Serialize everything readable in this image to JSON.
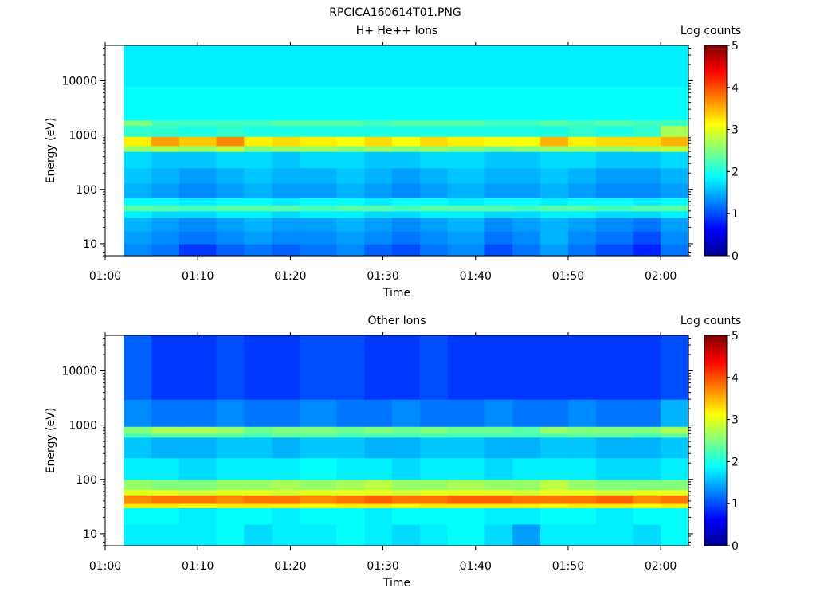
{
  "figure": {
    "title": "RPCICA160614T01.PNG"
  },
  "chart_data": [
    {
      "type": "heatmap",
      "title": "H+ He++ Ions",
      "xlabel": "Time",
      "ylabel": "Energy (eV)",
      "xlim": [
        "01:00",
        "02:03"
      ],
      "xticks": [
        "01:00",
        "01:10",
        "01:20",
        "01:30",
        "01:40",
        "01:50",
        "02:00"
      ],
      "ylim": [
        6,
        45000
      ],
      "yscale": "log",
      "yticks": [
        "10",
        "100",
        "1000",
        "10000"
      ],
      "data_start": "01:02",
      "colorbar": {
        "label": "Log counts",
        "range": [
          0,
          5
        ],
        "ticks": [
          "0",
          "1",
          "2",
          "3",
          "4",
          "5"
        ],
        "colormap": "jet"
      },
      "time_bins": [
        "01:02",
        "01:05",
        "01:08",
        "01:12",
        "01:15",
        "01:18",
        "01:21",
        "01:25",
        "01:28",
        "01:31",
        "01:34",
        "01:37",
        "01:41",
        "01:44",
        "01:47",
        "01:50",
        "01:53",
        "01:57",
        "02:00"
      ],
      "energy_bands": [
        {
          "e_min": 6,
          "e_max": 10,
          "log_counts": [
            1.3,
            1.2,
            0.9,
            1.1,
            1.2,
            1.1,
            1.2,
            1.3,
            1.1,
            1.0,
            1.2,
            1.3,
            1.0,
            1.2,
            1.4,
            1.2,
            1.0,
            0.8,
            1.2
          ]
        },
        {
          "e_min": 10,
          "e_max": 17,
          "log_counts": [
            1.4,
            1.3,
            1.2,
            1.3,
            1.4,
            1.3,
            1.3,
            1.4,
            1.3,
            1.2,
            1.3,
            1.4,
            1.2,
            1.3,
            1.5,
            1.3,
            1.2,
            1.0,
            1.3
          ]
        },
        {
          "e_min": 17,
          "e_max": 30,
          "log_counts": [
            1.5,
            1.4,
            1.3,
            1.4,
            1.5,
            1.4,
            1.4,
            1.5,
            1.4,
            1.3,
            1.4,
            1.5,
            1.3,
            1.4,
            1.5,
            1.4,
            1.3,
            1.2,
            1.4
          ]
        },
        {
          "e_min": 30,
          "e_max": 40,
          "log_counts": [
            1.8,
            1.7,
            1.7,
            1.8,
            1.8,
            1.7,
            1.8,
            1.8,
            1.7,
            1.7,
            1.8,
            1.8,
            1.7,
            1.7,
            1.8,
            1.8,
            1.7,
            1.7,
            1.8
          ]
        },
        {
          "e_min": 40,
          "e_max": 52,
          "log_counts": [
            2.3,
            2.3,
            2.2,
            2.3,
            2.3,
            2.3,
            2.2,
            2.3,
            2.3,
            2.2,
            2.3,
            2.3,
            2.3,
            2.2,
            2.3,
            2.3,
            2.2,
            2.3,
            2.3
          ]
        },
        {
          "e_min": 52,
          "e_max": 70,
          "log_counts": [
            1.9,
            1.9,
            1.8,
            1.9,
            1.9,
            1.8,
            1.9,
            1.9,
            1.8,
            1.9,
            1.9,
            1.8,
            1.9,
            1.9,
            1.8,
            1.9,
            1.9,
            1.8,
            1.9
          ]
        },
        {
          "e_min": 70,
          "e_max": 130,
          "log_counts": [
            1.5,
            1.4,
            1.3,
            1.4,
            1.5,
            1.4,
            1.4,
            1.5,
            1.4,
            1.3,
            1.4,
            1.5,
            1.4,
            1.4,
            1.5,
            1.4,
            1.3,
            1.3,
            1.4
          ]
        },
        {
          "e_min": 130,
          "e_max": 250,
          "log_counts": [
            1.6,
            1.5,
            1.4,
            1.5,
            1.6,
            1.5,
            1.5,
            1.6,
            1.5,
            1.4,
            1.5,
            1.6,
            1.5,
            1.5,
            1.6,
            1.5,
            1.4,
            1.4,
            1.5
          ]
        },
        {
          "e_min": 250,
          "e_max": 500,
          "log_counts": [
            1.7,
            1.6,
            1.6,
            1.7,
            1.7,
            1.6,
            1.7,
            1.7,
            1.6,
            1.6,
            1.7,
            1.7,
            1.6,
            1.6,
            1.7,
            1.7,
            1.6,
            1.6,
            1.7
          ]
        },
        {
          "e_min": 500,
          "e_max": 640,
          "log_counts": [
            2.6,
            2.7,
            2.6,
            2.8,
            2.5,
            2.6,
            2.6,
            2.5,
            2.6,
            2.5,
            2.6,
            2.5,
            2.4,
            2.5,
            2.6,
            2.6,
            2.6,
            2.7,
            2.8
          ]
        },
        {
          "e_min": 640,
          "e_max": 950,
          "log_counts": [
            3.2,
            3.6,
            3.4,
            3.7,
            3.2,
            3.3,
            3.2,
            3.1,
            3.3,
            3.1,
            3.3,
            3.2,
            3.1,
            3.1,
            3.5,
            3.2,
            3.3,
            3.3,
            3.5
          ]
        },
        {
          "e_min": 950,
          "e_max": 1500,
          "log_counts": [
            2.1,
            2.1,
            2.0,
            2.1,
            2.0,
            2.0,
            2.0,
            2.0,
            2.0,
            2.0,
            2.0,
            2.0,
            2.0,
            2.0,
            2.0,
            2.1,
            2.0,
            2.1,
            2.7
          ]
        },
        {
          "e_min": 1500,
          "e_max": 1900,
          "log_counts": [
            2.5,
            2.2,
            2.2,
            2.2,
            2.2,
            2.3,
            2.3,
            2.3,
            2.2,
            2.3,
            2.3,
            2.3,
            2.2,
            2.2,
            2.3,
            2.2,
            2.3,
            2.2,
            2.2
          ]
        },
        {
          "e_min": 1900,
          "e_max": 8000,
          "log_counts": [
            1.9,
            1.9,
            1.9,
            1.9,
            1.9,
            1.9,
            1.9,
            1.9,
            1.9,
            1.9,
            1.9,
            1.9,
            1.9,
            1.9,
            1.9,
            1.9,
            1.9,
            1.9,
            1.9
          ]
        },
        {
          "e_min": 8000,
          "e_max": 45000,
          "log_counts": [
            1.8,
            1.8,
            1.8,
            1.8,
            1.8,
            1.8,
            1.8,
            1.8,
            1.8,
            1.8,
            1.8,
            1.8,
            1.8,
            1.8,
            1.8,
            1.8,
            1.8,
            1.8,
            1.8
          ]
        }
      ]
    },
    {
      "type": "heatmap",
      "title": "Other Ions",
      "xlabel": "Time",
      "ylabel": "Energy (eV)",
      "xlim": [
        "01:00",
        "02:03"
      ],
      "xticks": [
        "01:00",
        "01:10",
        "01:20",
        "01:30",
        "01:40",
        "01:50",
        "02:00"
      ],
      "ylim": [
        6,
        45000
      ],
      "yscale": "log",
      "yticks": [
        "10",
        "100",
        "1000",
        "10000"
      ],
      "data_start": "01:02",
      "colorbar": {
        "label": "Log counts",
        "range": [
          0,
          5
        ],
        "ticks": [
          "0",
          "1",
          "2",
          "3",
          "4",
          "5"
        ],
        "colormap": "jet"
      },
      "time_bins": [
        "01:02",
        "01:05",
        "01:08",
        "01:12",
        "01:15",
        "01:18",
        "01:21",
        "01:25",
        "01:28",
        "01:31",
        "01:34",
        "01:37",
        "01:41",
        "01:44",
        "01:47",
        "01:50",
        "01:53",
        "01:57",
        "02:00"
      ],
      "energy_bands": [
        {
          "e_min": 6,
          "e_max": 15,
          "log_counts": [
            1.8,
            1.8,
            1.8,
            1.9,
            1.7,
            1.8,
            1.8,
            1.9,
            1.8,
            1.7,
            1.8,
            1.9,
            1.7,
            1.4,
            1.8,
            1.8,
            1.8,
            1.7,
            1.9
          ]
        },
        {
          "e_min": 15,
          "e_max": 30,
          "log_counts": [
            1.9,
            1.9,
            1.8,
            1.9,
            1.9,
            1.8,
            1.9,
            1.9,
            1.8,
            1.9,
            1.9,
            1.9,
            1.8,
            1.8,
            1.9,
            1.9,
            1.8,
            1.9,
            1.9
          ]
        },
        {
          "e_min": 30,
          "e_max": 36,
          "log_counts": [
            3.2,
            3.2,
            3.1,
            3.2,
            3.2,
            3.2,
            3.1,
            3.2,
            3.2,
            3.1,
            3.2,
            3.2,
            3.2,
            3.2,
            3.1,
            3.2,
            3.2,
            3.1,
            3.2
          ]
        },
        {
          "e_min": 36,
          "e_max": 52,
          "log_counts": [
            3.7,
            3.8,
            3.8,
            3.7,
            3.8,
            3.8,
            3.7,
            3.8,
            3.9,
            3.8,
            3.8,
            3.9,
            3.9,
            3.8,
            3.8,
            3.8,
            3.9,
            3.7,
            3.8
          ]
        },
        {
          "e_min": 52,
          "e_max": 65,
          "log_counts": [
            3.0,
            3.0,
            2.9,
            3.0,
            3.0,
            2.9,
            3.0,
            3.0,
            3.0,
            2.9,
            3.0,
            3.0,
            3.0,
            2.9,
            3.0,
            3.0,
            2.9,
            3.0,
            3.0
          ]
        },
        {
          "e_min": 65,
          "e_max": 100,
          "log_counts": [
            2.6,
            2.5,
            2.5,
            2.6,
            2.6,
            2.7,
            2.6,
            2.7,
            2.8,
            2.6,
            2.6,
            2.7,
            2.6,
            2.6,
            2.8,
            2.6,
            2.5,
            2.5,
            2.5
          ]
        },
        {
          "e_min": 100,
          "e_max": 250,
          "log_counts": [
            1.8,
            1.8,
            1.7,
            1.8,
            1.8,
            1.8,
            1.9,
            1.8,
            1.8,
            1.7,
            1.8,
            1.8,
            1.7,
            1.8,
            1.8,
            1.8,
            1.7,
            1.7,
            1.8
          ]
        },
        {
          "e_min": 250,
          "e_max": 600,
          "log_counts": [
            1.6,
            1.5,
            1.5,
            1.6,
            1.6,
            1.5,
            1.6,
            1.6,
            1.5,
            1.5,
            1.6,
            1.6,
            1.5,
            1.5,
            1.6,
            1.6,
            1.5,
            1.5,
            1.6
          ]
        },
        {
          "e_min": 600,
          "e_max": 700,
          "log_counts": [
            2.2,
            2.3,
            2.3,
            2.3,
            2.2,
            2.3,
            2.3,
            2.2,
            2.2,
            2.2,
            2.2,
            2.2,
            2.2,
            2.2,
            2.2,
            2.3,
            2.3,
            2.2,
            2.3
          ]
        },
        {
          "e_min": 700,
          "e_max": 950,
          "log_counts": [
            2.5,
            2.7,
            2.7,
            2.6,
            2.4,
            2.5,
            2.5,
            2.4,
            2.5,
            2.4,
            2.5,
            2.4,
            2.4,
            2.3,
            2.6,
            2.5,
            2.5,
            2.5,
            2.7
          ]
        },
        {
          "e_min": 950,
          "e_max": 3000,
          "log_counts": [
            1.3,
            1.2,
            1.2,
            1.3,
            1.2,
            1.2,
            1.3,
            1.2,
            1.2,
            1.3,
            1.2,
            1.2,
            1.3,
            1.2,
            1.2,
            1.3,
            1.2,
            1.2,
            1.5
          ]
        },
        {
          "e_min": 3000,
          "e_max": 45000,
          "log_counts": [
            1.1,
            0.9,
            0.9,
            1.0,
            0.9,
            0.9,
            1.0,
            1.0,
            0.9,
            0.9,
            1.0,
            0.9,
            0.9,
            0.9,
            0.9,
            0.9,
            0.9,
            0.9,
            1.0
          ]
        }
      ]
    }
  ]
}
